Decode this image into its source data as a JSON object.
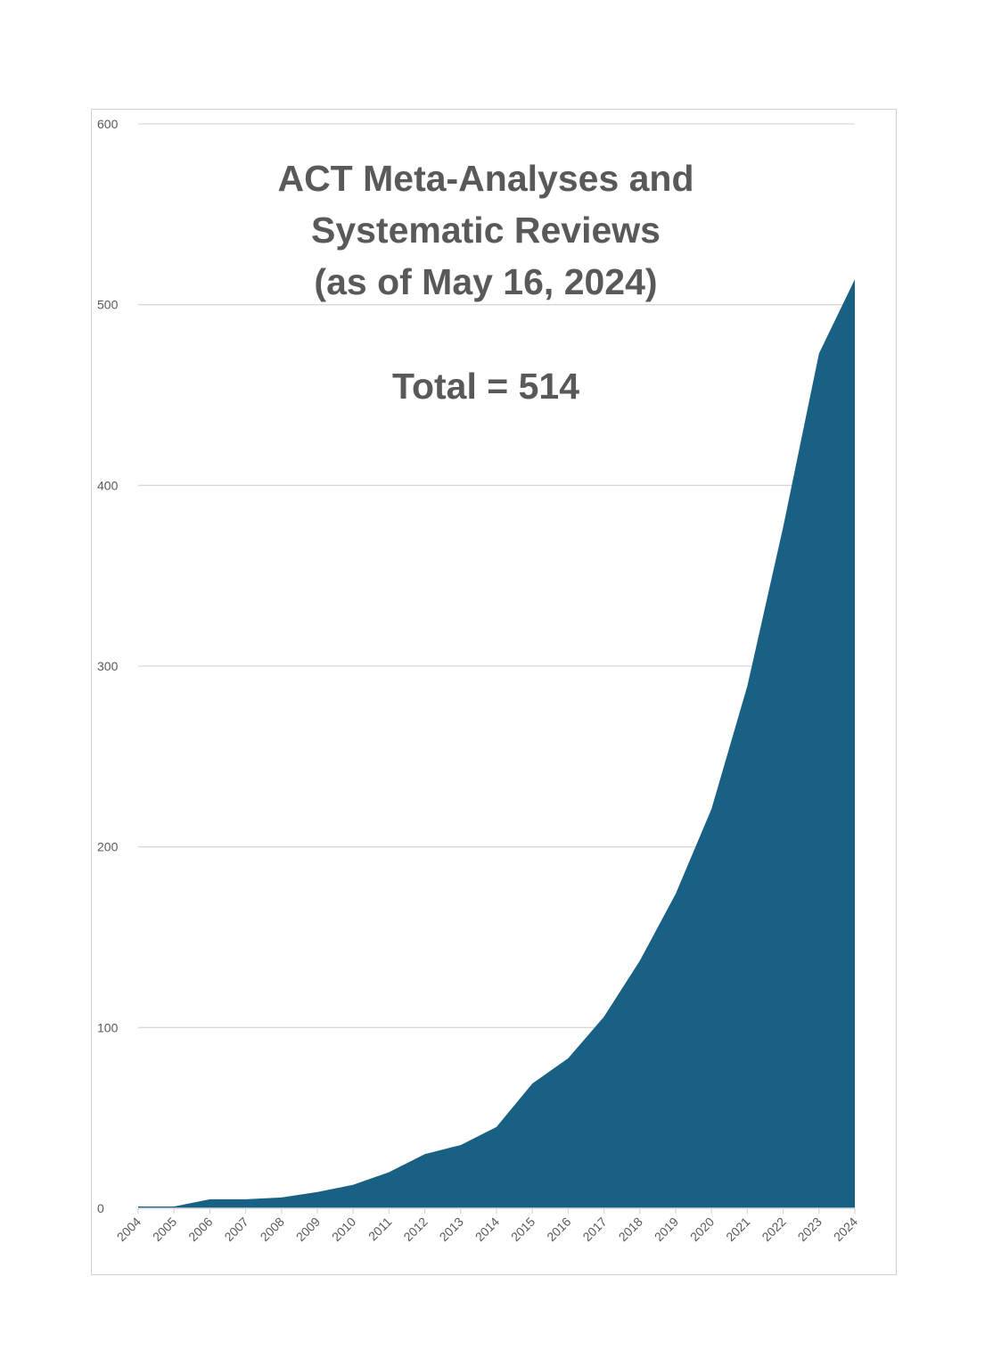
{
  "chart_data": {
    "type": "area",
    "title_lines": [
      "ACT Meta-Analyses and",
      "Systematic Reviews",
      "(as of May 16, 2024)"
    ],
    "annotation": "Total = 514",
    "xlabel": "",
    "ylabel": "",
    "categories": [
      "2004",
      "2005",
      "2006",
      "2007",
      "2008",
      "2009",
      "2010",
      "2011",
      "2012",
      "2013",
      "2014",
      "2015",
      "2016",
      "2017",
      "2018",
      "2019",
      "2020",
      "2021",
      "2022",
      "2023",
      "2024"
    ],
    "values": [
      1,
      1,
      5,
      5,
      6,
      9,
      13,
      20,
      30,
      35,
      45,
      69,
      83,
      106,
      137,
      174,
      221,
      289,
      377,
      473,
      514
    ],
    "ylim": [
      0,
      600
    ],
    "yticks": [
      "0",
      "100",
      "200",
      "300",
      "400",
      "500",
      "600"
    ],
    "grid": true,
    "legend": "none",
    "color": "#186084"
  }
}
